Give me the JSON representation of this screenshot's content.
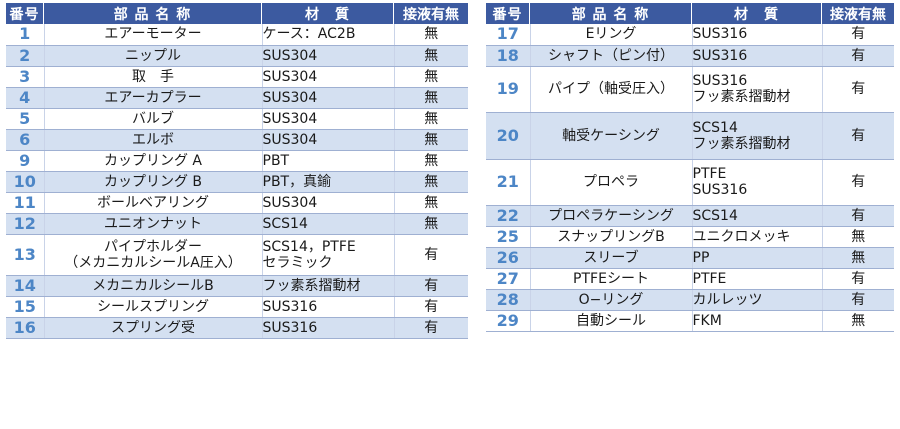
{
  "headers": {
    "no": "番号",
    "name": "部 品 名 称",
    "material": "材　質",
    "wetted": "接液有無"
  },
  "left_rows": [
    {
      "no": "1",
      "name": "エアーモーター",
      "material": "ケース：AC2B",
      "wetted": "無"
    },
    {
      "no": "2",
      "name": "ニップル",
      "material": "SUS304",
      "wetted": "無"
    },
    {
      "no": "3",
      "name": "取　手",
      "material": "SUS304",
      "wetted": "無"
    },
    {
      "no": "4",
      "name": "エアーカプラー",
      "material": "SUS304",
      "wetted": "無"
    },
    {
      "no": "5",
      "name": "バルブ",
      "material": "SUS304",
      "wetted": "無"
    },
    {
      "no": "6",
      "name": "エルボ",
      "material": "SUS304",
      "wetted": "無"
    },
    {
      "no": "9",
      "name": "カップリング A",
      "material": "PBT",
      "wetted": "無"
    },
    {
      "no": "10",
      "name": "カップリング B",
      "material": "PBT，真鍮",
      "wetted": "無"
    },
    {
      "no": "11",
      "name": "ボールベアリング",
      "material": "SUS304",
      "wetted": "無"
    },
    {
      "no": "12",
      "name": "ユニオンナット",
      "material": "SCS14",
      "wetted": "無"
    },
    {
      "no": "13",
      "name": "パイプホルダー\n（メカニカルシールA圧入）",
      "material": "SCS14，PTFE\nセラミック",
      "wetted": "有"
    },
    {
      "no": "14",
      "name": "メカニカルシールB",
      "material": "フッ素系摺動材",
      "wetted": "有"
    },
    {
      "no": "15",
      "name": "シールスプリング",
      "material": "SUS316",
      "wetted": "有"
    },
    {
      "no": "16",
      "name": "スプリング受",
      "material": "SUS316",
      "wetted": "有"
    }
  ],
  "right_rows": [
    {
      "no": "17",
      "name": "Eリング",
      "material": "SUS316",
      "wetted": "有"
    },
    {
      "no": "18",
      "name": "シャフト（ピン付）",
      "material": "SUS316",
      "wetted": "有"
    },
    {
      "no": "19",
      "name": "パイプ（軸受圧入）",
      "material": "SUS316\nフッ素系摺動材",
      "wetted": "有"
    },
    {
      "no": "20",
      "name": "軸受ケーシング",
      "material": "SCS14\nフッ素系摺動材",
      "wetted": "有"
    },
    {
      "no": "21",
      "name": "プロペラ",
      "material": "PTFE\nSUS316",
      "wetted": "有"
    },
    {
      "no": "22",
      "name": "プロペラケーシング",
      "material": "SCS14",
      "wetted": "有"
    },
    {
      "no": "25",
      "name": "スナップリングB",
      "material": "ユニクロメッキ",
      "wetted": "無"
    },
    {
      "no": "26",
      "name": "スリーブ",
      "material": "PP",
      "wetted": "無"
    },
    {
      "no": "27",
      "name": "PTFEシート",
      "material": "PTFE",
      "wetted": "有"
    },
    {
      "no": "28",
      "name": "O−リング",
      "material": "カルレッツ",
      "wetted": "有"
    },
    {
      "no": "29",
      "name": "自動シール",
      "material": "FKM",
      "wetted": "無"
    }
  ]
}
